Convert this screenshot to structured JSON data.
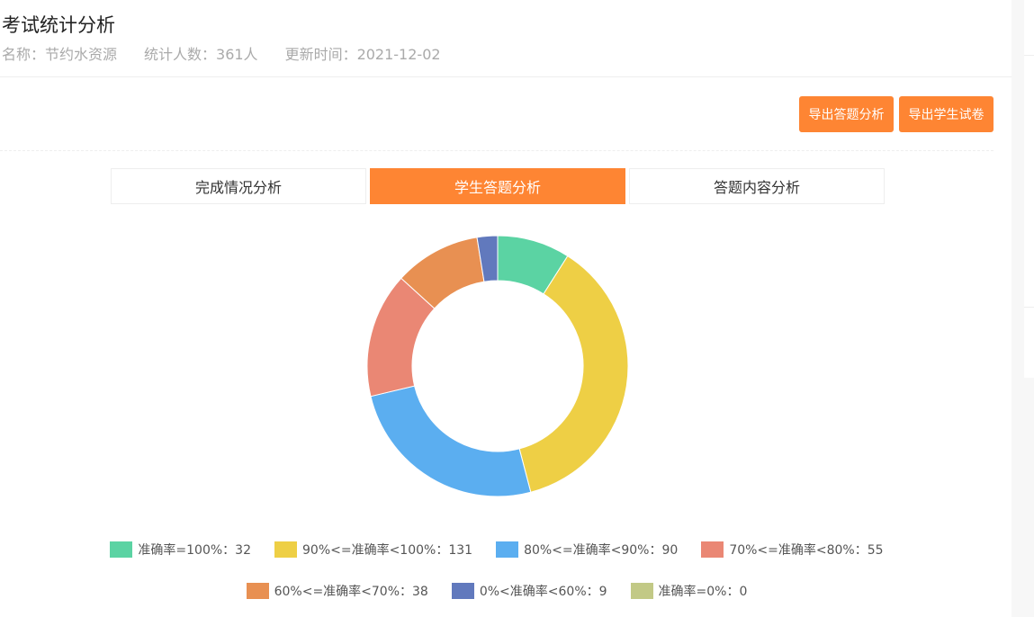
{
  "header": {
    "title": "考试统计分析",
    "name": "名称：节约水资源",
    "count": "统计人数：361人",
    "updated": "更新时间：2021-12-02"
  },
  "buttons": {
    "export_analysis": "导出答题分析",
    "export_papers": "导出学生试卷"
  },
  "tabs": [
    {
      "label": "完成情况分析",
      "active": false
    },
    {
      "label": "学生答题分析",
      "active": true
    },
    {
      "label": "答题内容分析",
      "active": false
    }
  ],
  "chart_data": {
    "type": "pie",
    "subtype": "donut",
    "legend": "bottom",
    "series": [
      {
        "name": "准确率=100%",
        "value": 32,
        "color": "#5bd3a3",
        "label": "准确率=100%：32"
      },
      {
        "name": "90%<=准确率<100%",
        "value": 131,
        "color": "#eecf45",
        "label": "90%<=准确率<100%：131"
      },
      {
        "name": "80%<=准确率<90%",
        "value": 90,
        "color": "#5baef0",
        "label": "80%<=准确率<90%：90"
      },
      {
        "name": "70%<=准确率<80%",
        "value": 55,
        "color": "#ea8774",
        "label": "70%<=准确率<80%：55"
      },
      {
        "name": "60%<=准确率<70%",
        "value": 38,
        "color": "#e89052",
        "label": "60%<=准确率<70%：38"
      },
      {
        "name": "0%<准确率<60%",
        "value": 9,
        "color": "#6179bd",
        "label": "0%<准确率<60%：9"
      },
      {
        "name": "准确率=0%",
        "value": 0,
        "color": "#c2c986",
        "label": "准确率=0%：0"
      }
    ]
  }
}
